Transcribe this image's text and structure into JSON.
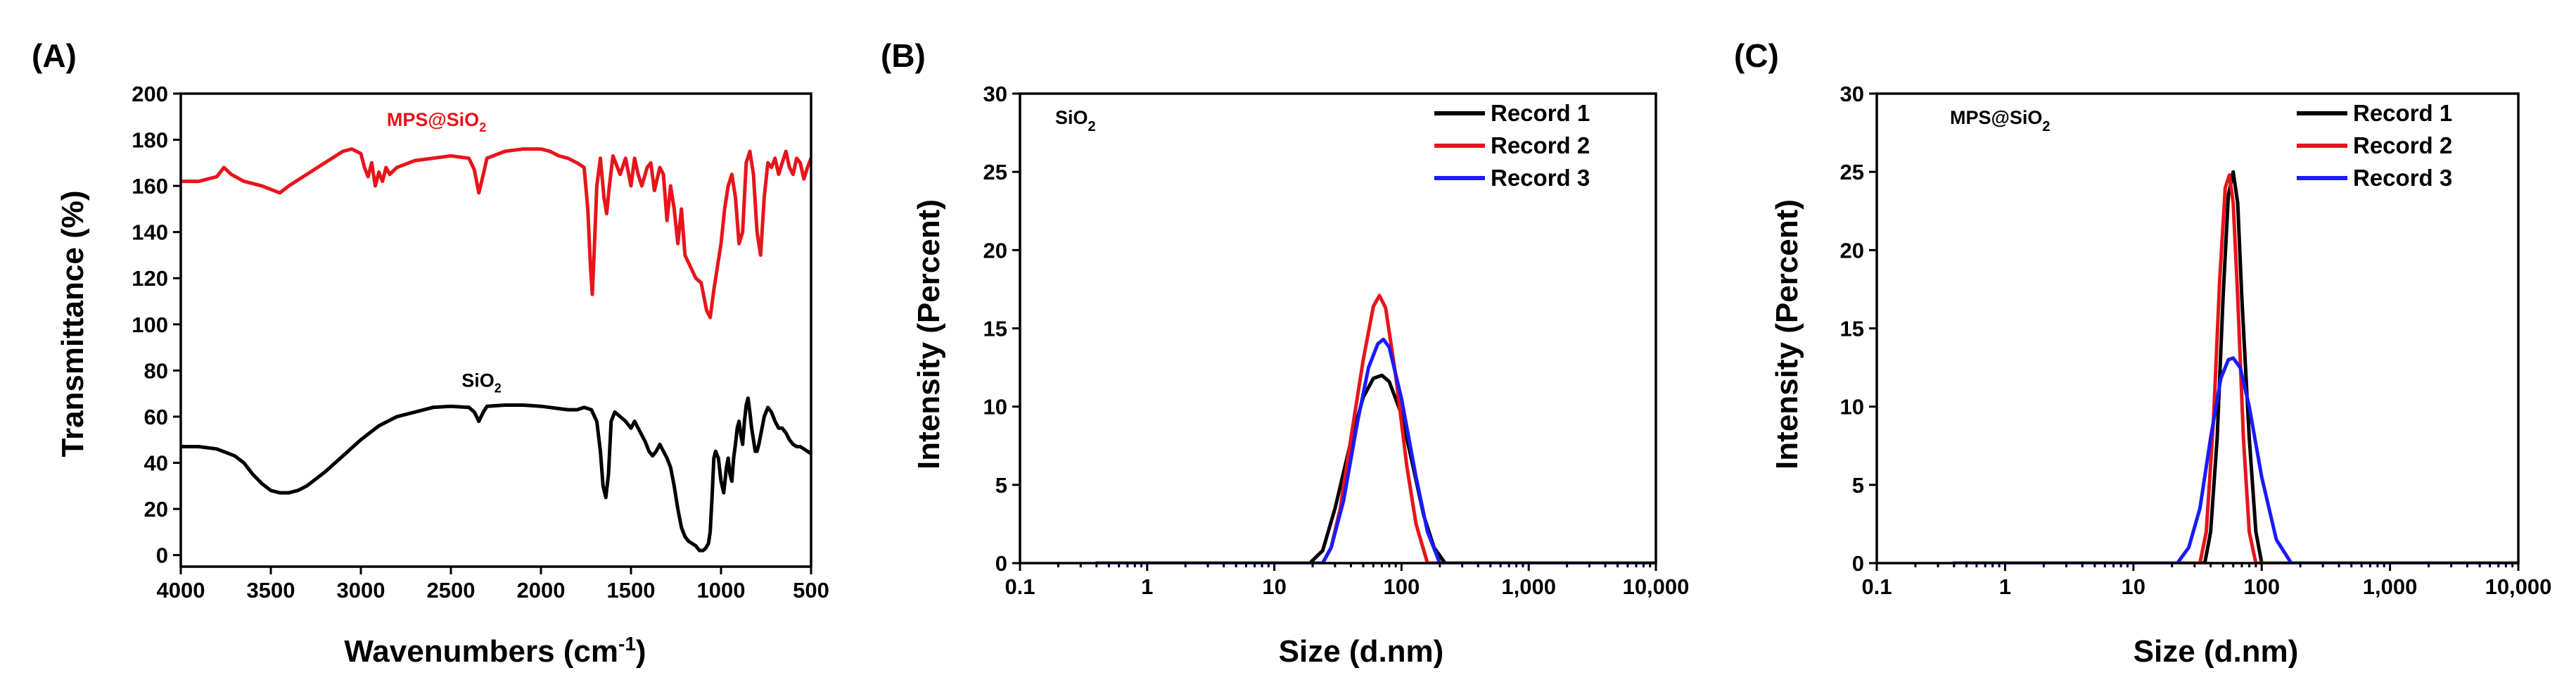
{
  "chart_data": [
    {
      "id": "A",
      "type": "line",
      "panel_label": "(A)",
      "xlabel": "Wavenumbers (cm",
      "xlabel_sup": "-1",
      "xlabel_close": ")",
      "ylabel": "Transmittance (%)",
      "xlim": [
        4000,
        500
      ],
      "ylim": [
        -5,
        200
      ],
      "xticks": [
        4000,
        3500,
        3000,
        2500,
        2000,
        1500,
        1000,
        500
      ],
      "xtick_labels": [
        "4000",
        "3500",
        "3000",
        "2500",
        "2000",
        "1500",
        "1000",
        "500"
      ],
      "yticks": [
        0,
        20,
        40,
        60,
        80,
        100,
        120,
        140,
        160,
        180,
        200
      ],
      "ytick_labels": [
        "0",
        "20",
        "40",
        "60",
        "80",
        "100",
        "120",
        "140",
        "160",
        "180",
        "200"
      ],
      "annotations": [
        {
          "text": "MPS@SiO",
          "sub": "2",
          "x": 2580,
          "y": 186,
          "color": "#e8141b"
        },
        {
          "text": "SiO",
          "sub": "2",
          "x": 2330,
          "y": 73,
          "color": "#000000"
        }
      ],
      "series": [
        {
          "name": "MPS@SiO2",
          "color": "#e8141b",
          "x": [
            4000,
            3900,
            3800,
            3760,
            3720,
            3650,
            3550,
            3450,
            3400,
            3300,
            3200,
            3100,
            3050,
            3000,
            2980,
            2960,
            2940,
            2920,
            2900,
            2880,
            2860,
            2840,
            2800,
            2700,
            2600,
            2500,
            2400,
            2370,
            2345,
            2320,
            2300,
            2200,
            2100,
            2000,
            1950,
            1900,
            1850,
            1800,
            1760,
            1740,
            1725,
            1715,
            1705,
            1690,
            1670,
            1650,
            1635,
            1620,
            1600,
            1560,
            1530,
            1500,
            1480,
            1460,
            1440,
            1410,
            1390,
            1370,
            1340,
            1320,
            1300,
            1280,
            1260,
            1240,
            1220,
            1200,
            1170,
            1140,
            1110,
            1080,
            1060,
            1040,
            1020,
            1000,
            980,
            960,
            940,
            920,
            900,
            880,
            860,
            840,
            820,
            800,
            780,
            760,
            740,
            720,
            700,
            680,
            660,
            640,
            620,
            600,
            580,
            560,
            540,
            520,
            500
          ],
          "y": [
            162,
            162,
            164,
            168,
            165,
            162,
            160,
            157,
            160,
            165,
            170,
            175,
            176,
            174,
            168,
            164,
            170,
            160,
            166,
            162,
            168,
            165,
            168,
            171,
            172,
            173,
            172,
            167,
            157,
            165,
            172,
            175,
            176,
            176,
            175,
            173,
            172,
            170,
            168,
            150,
            125,
            113,
            130,
            160,
            172,
            155,
            148,
            160,
            173,
            165,
            172,
            160,
            172,
            165,
            160,
            168,
            170,
            158,
            168,
            165,
            145,
            160,
            150,
            135,
            150,
            130,
            125,
            120,
            118,
            106,
            103,
            115,
            125,
            135,
            150,
            160,
            165,
            155,
            135,
            140,
            170,
            175,
            165,
            140,
            130,
            155,
            170,
            168,
            172,
            165,
            170,
            175,
            168,
            165,
            172,
            170,
            163,
            168,
            172
          ]
        },
        {
          "name": "SiO2",
          "color": "#000000",
          "x": [
            4000,
            3900,
            3800,
            3700,
            3650,
            3600,
            3550,
            3500,
            3450,
            3400,
            3350,
            3300,
            3200,
            3100,
            3000,
            2900,
            2800,
            2700,
            2600,
            2500,
            2400,
            2370,
            2345,
            2320,
            2300,
            2200,
            2100,
            2000,
            1950,
            1900,
            1850,
            1800,
            1760,
            1720,
            1690,
            1670,
            1655,
            1640,
            1625,
            1610,
            1590,
            1560,
            1530,
            1500,
            1480,
            1460,
            1440,
            1420,
            1400,
            1380,
            1360,
            1340,
            1320,
            1300,
            1280,
            1260,
            1240,
            1220,
            1200,
            1180,
            1160,
            1140,
            1120,
            1100,
            1085,
            1070,
            1060,
            1050,
            1040,
            1030,
            1015,
            1000,
            985,
            970,
            960,
            950,
            940,
            930,
            920,
            910,
            900,
            890,
            880,
            870,
            860,
            850,
            840,
            830,
            820,
            810,
            800,
            790,
            780,
            770,
            760,
            740,
            720,
            700,
            680,
            660,
            640,
            620,
            600,
            580,
            560,
            540,
            520,
            500
          ],
          "y": [
            47,
            47,
            46,
            43,
            40,
            35,
            31,
            28,
            27,
            27,
            28,
            30,
            36,
            43,
            50,
            56,
            60,
            62,
            64,
            64.5,
            64,
            62,
            58,
            62,
            64.5,
            65,
            65,
            64.5,
            64,
            63.5,
            63,
            63,
            64,
            63,
            58,
            45,
            30,
            25,
            35,
            58,
            62,
            60,
            58,
            55,
            58,
            55,
            52,
            49,
            45,
            43,
            45,
            48,
            45,
            42,
            38,
            30,
            20,
            12,
            8,
            6,
            5,
            4,
            2,
            2,
            3,
            5,
            10,
            25,
            42,
            45,
            42,
            32,
            27,
            38,
            42,
            35,
            32,
            42,
            48,
            55,
            58,
            52,
            48,
            58,
            65,
            68,
            62,
            55,
            50,
            45,
            45,
            48,
            52,
            56,
            60,
            64,
            62,
            58,
            55,
            55,
            53,
            50,
            48,
            47,
            47,
            46,
            45,
            44
          ]
        }
      ]
    },
    {
      "id": "B",
      "type": "line",
      "panel_label": "(B)",
      "xscale": "log",
      "xlabel": "Size (d.nm)",
      "ylabel": "Intensity (Percent)",
      "xlim": [
        0.1,
        10000
      ],
      "ylim": [
        0,
        30
      ],
      "xticks": [
        0.1,
        1,
        10,
        100,
        1000,
        10000
      ],
      "xtick_labels": [
        "0.1",
        "1",
        "10",
        "100",
        "1,000",
        "10,000"
      ],
      "yticks": [
        0,
        5,
        10,
        15,
        20,
        25,
        30
      ],
      "ytick_labels": [
        "0",
        "5",
        "10",
        "15",
        "20",
        "25",
        "30"
      ],
      "sample_label": "SiO",
      "sample_sub": "2",
      "legend": {
        "position": "top-right",
        "entries": [
          "Record 1",
          "Record 2",
          "Record 3"
        ]
      },
      "series": [
        {
          "name": "Record 1",
          "color": "#000000",
          "x": [
            0.4,
            19,
            24,
            30,
            40,
            50,
            60,
            70,
            80,
            100,
            120,
            150,
            180,
            220,
            10000
          ],
          "y": [
            0,
            0,
            0.8,
            3.5,
            7.8,
            10.6,
            11.8,
            12,
            11.6,
            9.5,
            6.6,
            3,
            1,
            0,
            0
          ]
        },
        {
          "name": "Record 2",
          "color": "#e8141b",
          "x": [
            0.4,
            24,
            28,
            33,
            40,
            50,
            60,
            67,
            75,
            90,
            110,
            130,
            160,
            10000
          ],
          "y": [
            0,
            0,
            1,
            3.5,
            8,
            13,
            16.4,
            17.1,
            16.3,
            12,
            6.2,
            2.5,
            0,
            0
          ]
        },
        {
          "name": "Record 3",
          "color": "#1a1aff",
          "x": [
            0.4,
            24,
            28,
            35,
            45,
            55,
            65,
            72,
            80,
            100,
            130,
            160,
            200,
            10000
          ],
          "y": [
            0,
            0,
            1,
            4,
            9,
            12.5,
            14,
            14.3,
            13.8,
            10.5,
            5.5,
            2,
            0,
            0
          ]
        }
      ]
    },
    {
      "id": "C",
      "type": "line",
      "panel_label": "(C)",
      "xscale": "log",
      "xlabel": "Size (d.nm)",
      "ylabel": "Intensity (Percent)",
      "xlim": [
        0.1,
        10000
      ],
      "ylim": [
        0,
        30
      ],
      "xticks": [
        0.1,
        1,
        10,
        100,
        1000,
        10000
      ],
      "xtick_labels": [
        "0.1",
        "1",
        "10",
        "100",
        "1,000",
        "10,000"
      ],
      "yticks": [
        0,
        5,
        10,
        15,
        20,
        25,
        30
      ],
      "ytick_labels": [
        "0",
        "5",
        "10",
        "15",
        "20",
        "25",
        "30"
      ],
      "sample_label": "MPS@SiO",
      "sample_sub": "2",
      "legend": {
        "position": "top-right",
        "entries": [
          "Record 1",
          "Record 2",
          "Record 3"
        ]
      },
      "series": [
        {
          "name": "Record 1",
          "color": "#000000",
          "x": [
            0.4,
            36,
            40,
            45,
            50,
            55,
            60,
            65,
            70,
            80,
            90,
            100,
            10000
          ],
          "y": [
            0,
            0,
            2,
            8,
            17,
            23.5,
            25,
            23,
            17,
            8,
            2,
            0,
            0
          ]
        },
        {
          "name": "Record 2",
          "color": "#e8141b",
          "x": [
            0.4,
            33,
            37,
            42,
            47,
            52,
            56,
            60,
            65,
            72,
            80,
            90,
            10000
          ],
          "y": [
            0,
            0,
            2,
            9,
            18,
            24,
            24.8,
            23,
            17,
            8,
            2,
            0,
            0
          ]
        },
        {
          "name": "Record 3",
          "color": "#1a1aff",
          "x": [
            0.4,
            22,
            27,
            33,
            40,
            48,
            55,
            60,
            68,
            80,
            100,
            130,
            170,
            10000
          ],
          "y": [
            0,
            0,
            1,
            3.5,
            8,
            11.8,
            13,
            13.1,
            12.5,
            10,
            5.5,
            1.5,
            0,
            0
          ]
        }
      ]
    }
  ]
}
